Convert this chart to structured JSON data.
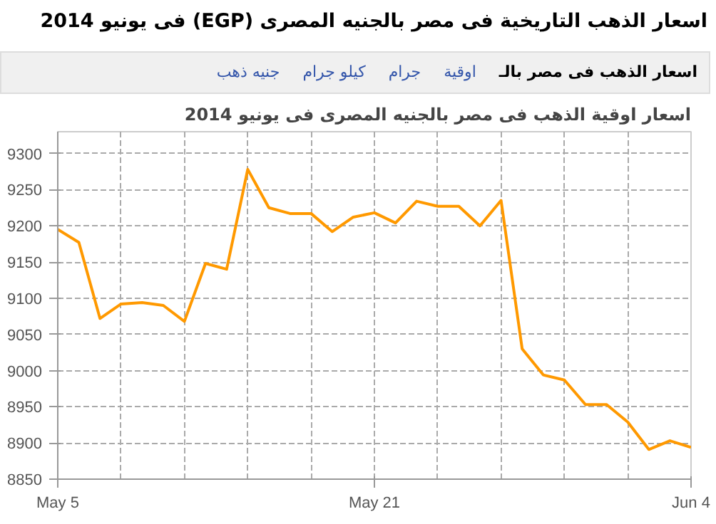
{
  "chart_data": {
    "type": "line",
    "title": "اسعار الذهب التاريخية فى مصر بالجنيه المصرى (EGP) فى يونيو 2014",
    "subtitle": "اسعار اوقية الذهب فى مصر بالجنيه المصرى فى يونيو 2014",
    "annotations": [
      "اسعار الذهب فى مصر بالـ",
      "اوقية",
      "جرام",
      "كيلو جرام",
      "جنيه ذهب"
    ],
    "categories": [
      "May 5",
      null,
      null,
      null,
      null,
      null,
      null,
      null,
      null,
      null,
      null,
      null,
      null,
      null,
      null,
      "May 21",
      null,
      null,
      null,
      null,
      null,
      null,
      null,
      null,
      null,
      null,
      null,
      null,
      null,
      null,
      "Jun 4"
    ],
    "series": [
      {
        "color": "#ff9900",
        "values": [
          9195,
          9177,
          9072,
          9092,
          9094,
          9090,
          9068,
          9148,
          9140,
          9278,
          9225,
          9217,
          9217,
          9192,
          9212,
          9218,
          9204,
          9234,
          9227,
          9227,
          9200,
          9235,
          9030,
          8994,
          8987,
          8953,
          8953,
          8929,
          8891,
          8903,
          8894
        ]
      }
    ],
    "ylim": [
      8850,
      9330
    ],
    "yticks": [
      8850,
      8900,
      8950,
      9000,
      9050,
      9100,
      9150,
      9200,
      9250,
      9300
    ],
    "grid": true
  }
}
